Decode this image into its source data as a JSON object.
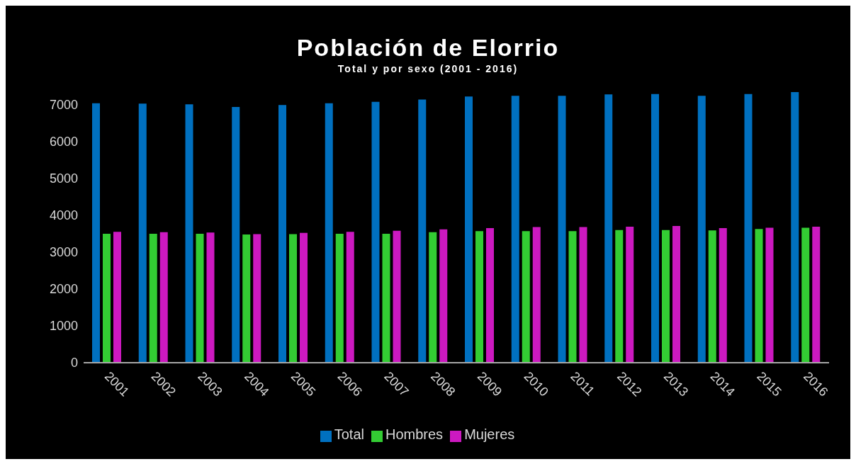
{
  "chart_data": {
    "type": "bar",
    "title": "Población de Elorrio",
    "subtitle": "Total y por sexo (2001 - 2016)",
    "categories": [
      "2001",
      "2002",
      "2003",
      "2004",
      "2005",
      "2006",
      "2007",
      "2008",
      "2009",
      "2010",
      "2011",
      "2012",
      "2013",
      "2014",
      "2015",
      "2016"
    ],
    "series": [
      {
        "name": "Total",
        "color": "#0070c0",
        "values": [
          7040,
          7030,
          7010,
          6940,
          6990,
          7040,
          7080,
          7140,
          7220,
          7240,
          7240,
          7280,
          7290,
          7240,
          7290,
          7340
        ]
      },
      {
        "name": "Hombres",
        "color": "#33cc33",
        "values": [
          3500,
          3500,
          3500,
          3480,
          3490,
          3500,
          3500,
          3540,
          3570,
          3570,
          3570,
          3600,
          3600,
          3590,
          3630,
          3660
        ]
      },
      {
        "name": "Mujeres",
        "color": "#cc19c0",
        "values": [
          3550,
          3540,
          3530,
          3490,
          3520,
          3550,
          3580,
          3620,
          3650,
          3680,
          3680,
          3690,
          3710,
          3650,
          3660,
          3690
        ]
      }
    ],
    "ylim": [
      0,
      7400
    ],
    "yticks": [
      0,
      1000,
      2000,
      3000,
      4000,
      5000,
      6000,
      7000
    ],
    "grid": false,
    "legend": "bottom"
  }
}
